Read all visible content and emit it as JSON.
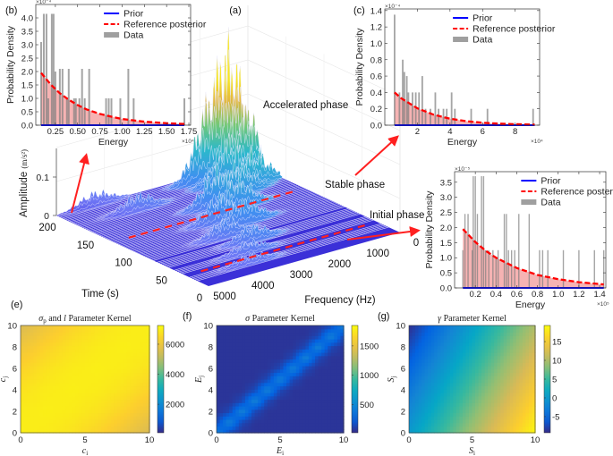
{
  "colors": {
    "prior": "#0000ff",
    "posterior": "#ff0000",
    "posterior_fill": "#f08080",
    "data": "#7f7f7f",
    "surface_floor": "#3b30d8",
    "arrow": "#ff2020"
  },
  "legend": {
    "prior": "Prior",
    "posterior": "Reference posterior",
    "data": "Data"
  },
  "chart_data": [
    {
      "panel_label": "(a)",
      "type": "surface",
      "xlabel": "Time (s)",
      "ylabel": "Frequency (Hz)",
      "zlabel": "Amplitude (m/s²)",
      "zlabel_main": "Amplitude",
      "zlabel_unit": "(m/s²)",
      "time_ticks": [
        "0",
        "50",
        "100",
        "150",
        "200"
      ],
      "frequency_ticks": [
        "0",
        "1000",
        "2000",
        "3000",
        "4000",
        "5000"
      ],
      "amplitude_ticks": [
        "0",
        "0.1"
      ],
      "xlim": [
        0,
        200
      ],
      "ylim": [
        0,
        5000
      ],
      "peaks": [
        {
          "time": 195,
          "frequency": 600,
          "amplitude": 0.35
        },
        {
          "time": 190,
          "frequency": 1200,
          "amplitude": 0.2
        },
        {
          "time": 185,
          "frequency": 400,
          "amplitude": 0.18
        },
        {
          "time": 175,
          "frequency": 1000,
          "amplitude": 0.13
        },
        {
          "time": 160,
          "frequency": 700,
          "amplitude": 0.1
        },
        {
          "time": 150,
          "frequency": 1300,
          "amplitude": 0.09
        },
        {
          "time": 140,
          "frequency": 2000,
          "amplitude": 0.11
        },
        {
          "time": 125,
          "frequency": 1800,
          "amplitude": 0.09
        },
        {
          "time": 110,
          "frequency": 2500,
          "amplitude": 0.08
        },
        {
          "time": 95,
          "frequency": 2200,
          "amplitude": 0.07
        },
        {
          "time": 80,
          "frequency": 3000,
          "amplitude": 0.05
        },
        {
          "time": 60,
          "frequency": 2700,
          "amplitude": 0.045
        },
        {
          "time": 40,
          "frequency": 3200,
          "amplitude": 0.035
        },
        {
          "time": 200,
          "frequency": 4000,
          "amplitude": 0.04
        },
        {
          "time": 170,
          "frequency": 3500,
          "amplitude": 0.05
        },
        {
          "time": 20,
          "frequency": 3500,
          "amplitude": 0.03
        }
      ],
      "phase_boundaries_time": [
        125,
        30
      ],
      "annotations": {
        "accelerated": "Accelerated phase",
        "stable": "Stable phase",
        "initial": "Initial phase"
      }
    },
    {
      "panel_label": "(b)",
      "type": "bar",
      "xlabel": "Energy",
      "ylabel": "Probability Density",
      "x_multiplier": "×10⁴",
      "y_multiplier": "×10⁻⁴",
      "xlim": [
        0.03,
        1.77
      ],
      "ylim": [
        0,
        4.5
      ],
      "xticks": [
        0.25,
        0.5,
        0.75,
        1.0,
        1.25,
        1.5,
        1.75
      ],
      "xtick_labels": [
        "0.25",
        "0.50",
        "0.75",
        "1.00",
        "1.25",
        "1.50",
        "1.75"
      ],
      "yticks": [
        0,
        0.5,
        1,
        1.5,
        2,
        2.5,
        3,
        3.5,
        4
      ],
      "ytick_labels": [
        "0.0",
        "0.5",
        "1.0",
        "1.5",
        "2.0",
        "2.5",
        "3.0",
        "3.5",
        "4.0"
      ],
      "bin_width": 0.02,
      "data_bars": [
        [
          0.09,
          3.1
        ],
        [
          0.12,
          4.15
        ],
        [
          0.15,
          4.15
        ],
        [
          0.17,
          1.0
        ],
        [
          0.21,
          4.15
        ],
        [
          0.23,
          4.15
        ],
        [
          0.25,
          2.0
        ],
        [
          0.3,
          2.1
        ],
        [
          0.33,
          2.1
        ],
        [
          0.38,
          1.0
        ],
        [
          0.4,
          2.1
        ],
        [
          0.46,
          1.0
        ],
        [
          0.48,
          1.0
        ],
        [
          0.52,
          1.0
        ],
        [
          0.55,
          2.1
        ],
        [
          0.58,
          1.0
        ],
        [
          0.63,
          2.1
        ],
        [
          0.82,
          1.0
        ],
        [
          0.85,
          1.0
        ],
        [
          0.88,
          1.0
        ],
        [
          0.98,
          1.0
        ],
        [
          1.07,
          2.1
        ],
        [
          1.13,
          1.0
        ],
        [
          1.7,
          1.0
        ]
      ],
      "reference_posterior": [
        [
          0.09,
          1.95
        ],
        [
          0.2,
          1.51
        ],
        [
          0.3,
          1.19
        ],
        [
          0.4,
          0.95
        ],
        [
          0.5,
          0.75
        ],
        [
          0.6,
          0.59
        ],
        [
          0.75,
          0.42
        ],
        [
          0.9,
          0.3
        ],
        [
          1.0,
          0.23
        ],
        [
          1.25,
          0.13
        ],
        [
          1.5,
          0.073
        ],
        [
          1.7,
          0.046
        ]
      ],
      "prior": [
        [
          0.09,
          0.0
        ],
        [
          1.7,
          0.0
        ]
      ]
    },
    {
      "panel_label": "(c)",
      "type": "bar",
      "xlabel": "Energy",
      "ylabel": "Probability Density",
      "x_multiplier": "×10⁴",
      "y_multiplier": "×10⁻⁴",
      "xlim": [
        0,
        9.5
      ],
      "ylim": [
        0,
        1.42
      ],
      "xticks": [
        2,
        4,
        6,
        8
      ],
      "xtick_labels": [
        "2",
        "4",
        "6",
        "8"
      ],
      "yticks": [
        0,
        0.2,
        0.4,
        0.6,
        0.8,
        1.0,
        1.2,
        1.4
      ],
      "ytick_labels": [
        "0.0",
        "0.2",
        "0.4",
        "0.6",
        "0.8",
        "1.0",
        "1.2",
        "1.4"
      ],
      "bin_width": 0.1,
      "data_bars": [
        [
          0.6,
          1.35
        ],
        [
          0.9,
          0.4
        ],
        [
          1.1,
          0.8
        ],
        [
          1.2,
          0.65
        ],
        [
          1.35,
          0.6
        ],
        [
          1.45,
          0.4
        ],
        [
          1.7,
          0.4
        ],
        [
          1.9,
          0.4
        ],
        [
          2.1,
          0.4
        ],
        [
          2.3,
          0.6
        ],
        [
          2.5,
          0.2
        ],
        [
          2.8,
          0.2
        ],
        [
          3.1,
          0.4
        ],
        [
          3.3,
          0.2
        ],
        [
          3.6,
          0.2
        ],
        [
          3.8,
          0.2
        ],
        [
          4.1,
          0.4
        ],
        [
          4.3,
          0.2
        ],
        [
          5.3,
          0.2
        ],
        [
          6.3,
          0.2
        ],
        [
          9.1,
          0.2
        ]
      ],
      "reference_posterior": [
        [
          0.6,
          0.4
        ],
        [
          1,
          0.33
        ],
        [
          2,
          0.206
        ],
        [
          3,
          0.128
        ],
        [
          4,
          0.079
        ],
        [
          5,
          0.049
        ],
        [
          6,
          0.03
        ],
        [
          7,
          0.019
        ],
        [
          8,
          0.012
        ],
        [
          9.2,
          0.007
        ]
      ],
      "prior": [
        [
          0.6,
          0.0
        ],
        [
          9.2,
          0.0
        ]
      ]
    },
    {
      "panel_label": "",
      "type": "bar",
      "xlabel": "Energy",
      "ylabel": "Probability Density",
      "x_multiplier": "×10⁵",
      "y_multiplier": "×10⁻⁵",
      "xlim": [
        0,
        1.46
      ],
      "ylim": [
        0,
        3.85
      ],
      "xticks": [
        0.2,
        0.4,
        0.6,
        0.8,
        1.0,
        1.2,
        1.4
      ],
      "xtick_labels": [
        "0.2",
        "0.4",
        "0.6",
        "0.8",
        "1.0",
        "1.2",
        "1.4"
      ],
      "yticks": [
        0,
        0.5,
        1,
        1.5,
        2,
        2.5,
        3,
        3.5
      ],
      "ytick_labels": [
        "0.0",
        "0.5",
        "1.0",
        "1.5",
        "2.0",
        "2.5",
        "3.0",
        "3.5"
      ],
      "bin_width": 0.012,
      "data_bars": [
        [
          0.08,
          1.25
        ],
        [
          0.1,
          2.45
        ],
        [
          0.13,
          2.45
        ],
        [
          0.17,
          1.25
        ],
        [
          0.18,
          3.7
        ],
        [
          0.2,
          3.7
        ],
        [
          0.22,
          2.45
        ],
        [
          0.26,
          3.7
        ],
        [
          0.28,
          3.7
        ],
        [
          0.3,
          1.25
        ],
        [
          0.33,
          1.25
        ],
        [
          0.37,
          1.25
        ],
        [
          0.4,
          1.0
        ],
        [
          0.42,
          1.25
        ],
        [
          0.48,
          2.45
        ],
        [
          0.5,
          2.45
        ],
        [
          0.52,
          1.25
        ],
        [
          0.55,
          1.25
        ],
        [
          0.58,
          1.25
        ],
        [
          0.62,
          2.45
        ],
        [
          0.72,
          2.45
        ],
        [
          0.82,
          1.25
        ],
        [
          0.85,
          1.25
        ],
        [
          0.9,
          1.25
        ],
        [
          1.05,
          1.25
        ],
        [
          1.2,
          1.25
        ],
        [
          1.35,
          1.25
        ],
        [
          1.44,
          1.25
        ]
      ],
      "reference_posterior": [
        [
          0.08,
          1.95
        ],
        [
          0.2,
          1.52
        ],
        [
          0.3,
          1.23
        ],
        [
          0.4,
          1.0
        ],
        [
          0.6,
          0.66
        ],
        [
          0.8,
          0.43
        ],
        [
          1.0,
          0.29
        ],
        [
          1.2,
          0.19
        ],
        [
          1.44,
          0.115
        ]
      ],
      "prior": [
        [
          0.08,
          0.0
        ],
        [
          1.44,
          0.0
        ]
      ]
    },
    {
      "panel_label": "(e)",
      "type": "heatmap",
      "title_sym": "σ",
      "title_sub": "p",
      "title_rest": " and ",
      "title_sym2": "l",
      "title_tail": " Parameter Kernel",
      "xlabel": "c",
      "xlabel_sub": "i",
      "ylabel": "c",
      "ylabel_sub": "j",
      "xlim": [
        0,
        10
      ],
      "ylim": [
        0,
        10
      ],
      "xticks": [
        "0",
        "5",
        "10"
      ],
      "yticks": [
        "0",
        "2",
        "4",
        "6",
        "8",
        "10"
      ],
      "clim": [
        100,
        7250
      ],
      "cticks": [
        2000,
        4000,
        6000
      ],
      "x": [
        0,
        2,
        4,
        6,
        8,
        10
      ],
      "y": [
        0,
        2,
        4,
        6,
        8,
        10
      ],
      "z": [
        [
          7000,
          6940,
          6760,
          6460,
          6040,
          5500
        ],
        [
          6940,
          7000,
          6940,
          6760,
          6460,
          6040
        ],
        [
          6760,
          6940,
          7000,
          6940,
          6760,
          6460
        ],
        [
          6460,
          6760,
          6940,
          7000,
          6940,
          6760
        ],
        [
          6040,
          6460,
          6760,
          6940,
          7000,
          6940
        ],
        [
          5500,
          6040,
          6460,
          6760,
          6940,
          7000
        ]
      ]
    },
    {
      "panel_label": "(f)",
      "type": "heatmap",
      "title_sym": "σ",
      "title_sub": "",
      "title_rest": "",
      "title_sym2": "",
      "title_tail": " Parameter Kernel",
      "xlabel": "E",
      "xlabel_sub": "i",
      "ylabel": "E",
      "ylabel_sub": "j",
      "xlim": [
        0,
        10
      ],
      "ylim": [
        0,
        10
      ],
      "xticks": [
        "0",
        "5",
        "10"
      ],
      "yticks": [
        "0",
        "2",
        "4",
        "6",
        "8",
        "10"
      ],
      "clim": [
        15,
        1850
      ],
      "cticks": [
        500,
        1000,
        1500
      ],
      "x": [
        0,
        1,
        2,
        3,
        4,
        5,
        6,
        7,
        8,
        9,
        10
      ],
      "y": [
        0,
        1,
        2,
        3,
        4,
        5,
        6,
        7,
        8,
        9,
        10
      ],
      "z": [
        [
          450,
          134,
          60,
          60,
          60,
          60,
          60,
          60,
          60,
          60,
          60
        ],
        [
          134,
          450,
          134,
          60,
          60,
          60,
          60,
          60,
          60,
          60,
          60
        ],
        [
          60,
          134,
          450,
          134,
          60,
          60,
          60,
          60,
          60,
          60,
          60
        ],
        [
          60,
          60,
          134,
          450,
          134,
          60,
          60,
          60,
          60,
          60,
          60
        ],
        [
          60,
          60,
          60,
          134,
          450,
          134,
          60,
          60,
          60,
          60,
          60
        ],
        [
          60,
          60,
          60,
          60,
          134,
          450,
          134,
          60,
          60,
          60,
          60
        ],
        [
          60,
          60,
          60,
          60,
          60,
          134,
          450,
          134,
          60,
          60,
          60
        ],
        [
          60,
          60,
          60,
          60,
          60,
          60,
          134,
          450,
          134,
          60,
          60
        ],
        [
          60,
          60,
          60,
          60,
          60,
          60,
          60,
          134,
          450,
          134,
          60
        ],
        [
          60,
          60,
          60,
          60,
          60,
          60,
          60,
          60,
          134,
          450,
          134
        ],
        [
          60,
          60,
          60,
          60,
          60,
          60,
          60,
          60,
          60,
          134,
          450
        ]
      ]
    },
    {
      "panel_label": "(g)",
      "type": "heatmap",
      "title_sym": "γ",
      "title_sub": "",
      "title_rest": "",
      "title_sym2": "",
      "title_tail": " Parameter Kernel",
      "xlabel": "S",
      "xlabel_sub": "i",
      "ylabel": "S",
      "ylabel_sub": "j",
      "xlim": [
        0,
        10
      ],
      "ylim": [
        0,
        10
      ],
      "xticks": [
        "0",
        "5",
        "10"
      ],
      "yticks": [
        "0",
        "2",
        "4",
        "6",
        "8",
        "10"
      ],
      "clim": [
        -9.3,
        19.3
      ],
      "cticks": [
        -5,
        0,
        5,
        10,
        15
      ],
      "x": [
        0,
        10
      ],
      "y": [
        0,
        10
      ],
      "z": [
        [
          0,
          19
        ],
        [
          -9,
          10
        ]
      ]
    }
  ]
}
